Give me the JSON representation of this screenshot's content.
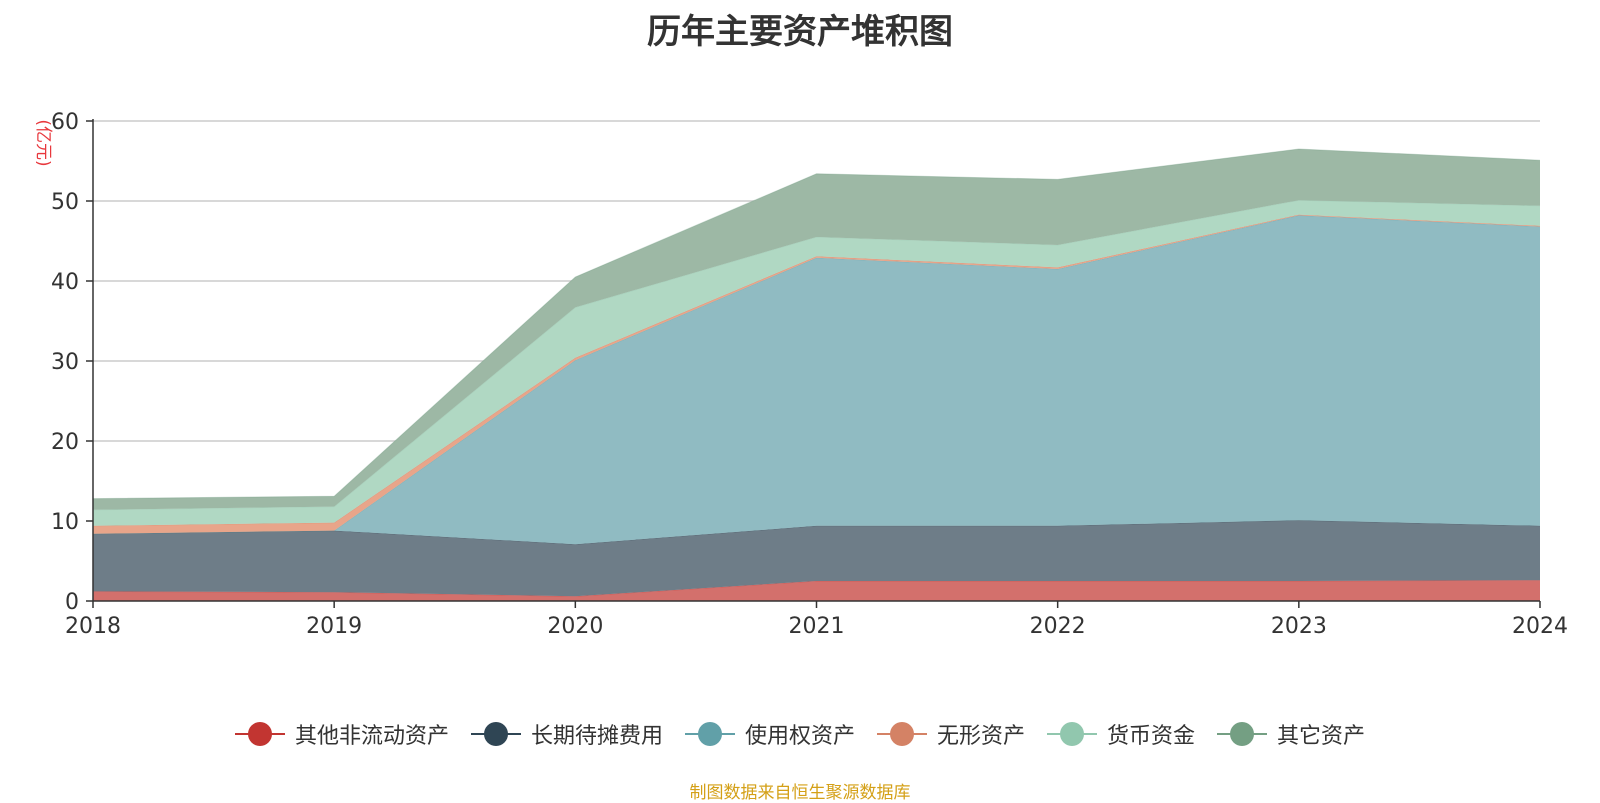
{
  "colors": {
    "grid": "#cccccc",
    "axis": "#333333",
    "unit": "#e8383d",
    "source": "#d4a017"
  },
  "chart_data": {
    "type": "area",
    "stacked": true,
    "title": "历年主要资产堆积图",
    "unit_label": "(亿元)",
    "x": [
      "2018",
      "2019",
      "2020",
      "2021",
      "2022",
      "2023",
      "2024"
    ],
    "ylim": [
      0,
      60
    ],
    "yticks": [
      0,
      10,
      20,
      30,
      40,
      50,
      60
    ],
    "grid": true,
    "legend_position": "bottom",
    "series": [
      {
        "name": "其他非流动资产",
        "color": "#c23531",
        "fill": "#d3706c",
        "values": [
          1.2,
          1.1,
          0.6,
          2.5,
          2.5,
          2.5,
          2.6
        ]
      },
      {
        "name": "长期待摊费用",
        "color": "#2f4554",
        "fill": "#6e7d88",
        "values": [
          7.2,
          7.7,
          6.5,
          6.9,
          6.9,
          7.6,
          6.8
        ]
      },
      {
        "name": "使用权资产",
        "color": "#61a0a8",
        "fill": "#90bbc2",
        "values": [
          0.0,
          0.0,
          23.0,
          33.5,
          32.1,
          38.1,
          37.4
        ]
      },
      {
        "name": "无形资产",
        "color": "#d48265",
        "fill": "#e8a58a",
        "values": [
          1.0,
          1.0,
          0.3,
          0.2,
          0.2,
          0.1,
          0.1
        ]
      },
      {
        "name": "货币资金",
        "color": "#91c7ae",
        "fill": "#b0d8c3",
        "values": [
          2.0,
          2.0,
          6.3,
          2.4,
          2.8,
          1.8,
          2.5
        ]
      },
      {
        "name": "其它资产",
        "color": "#749f83",
        "fill": "#9db8a5",
        "values": [
          1.4,
          1.3,
          3.8,
          7.9,
          8.2,
          6.4,
          5.7
        ]
      }
    ]
  },
  "source_note": "制图数据来自恒生聚源数据库"
}
